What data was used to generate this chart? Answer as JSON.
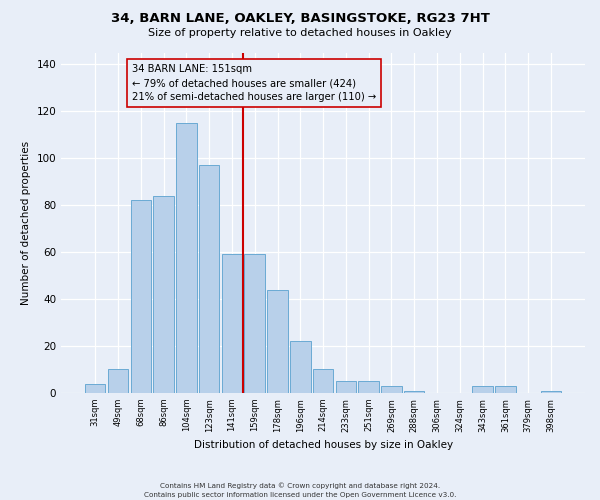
{
  "title1": "34, BARN LANE, OAKLEY, BASINGSTOKE, RG23 7HT",
  "title2": "Size of property relative to detached houses in Oakley",
  "xlabel": "Distribution of detached houses by size in Oakley",
  "ylabel": "Number of detached properties",
  "bar_labels": [
    "31sqm",
    "49sqm",
    "68sqm",
    "86sqm",
    "104sqm",
    "123sqm",
    "141sqm",
    "159sqm",
    "178sqm",
    "196sqm",
    "214sqm",
    "233sqm",
    "251sqm",
    "269sqm",
    "288sqm",
    "306sqm",
    "324sqm",
    "343sqm",
    "361sqm",
    "379sqm",
    "398sqm"
  ],
  "bar_values": [
    4,
    10,
    82,
    84,
    115,
    97,
    59,
    59,
    44,
    22,
    10,
    5,
    5,
    3,
    1,
    0,
    0,
    3,
    3,
    0,
    1
  ],
  "bar_color": "#b8d0ea",
  "bar_edgecolor": "#6aaad4",
  "vline_color": "#cc0000",
  "box_edgecolor": "#cc0000",
  "box_facecolor": "#e8eef8",
  "annotation_title": "34 BARN LANE: 151sqm",
  "annotation_line1": "← 79% of detached houses are smaller (424)",
  "annotation_line2": "21% of semi-detached houses are larger (110) →",
  "ylim": [
    0,
    145
  ],
  "yticks": [
    0,
    20,
    40,
    60,
    80,
    100,
    120,
    140
  ],
  "bg_color": "#e8eef8",
  "footer1": "Contains HM Land Registry data © Crown copyright and database right 2024.",
  "footer2": "Contains public sector information licensed under the Open Government Licence v3.0."
}
